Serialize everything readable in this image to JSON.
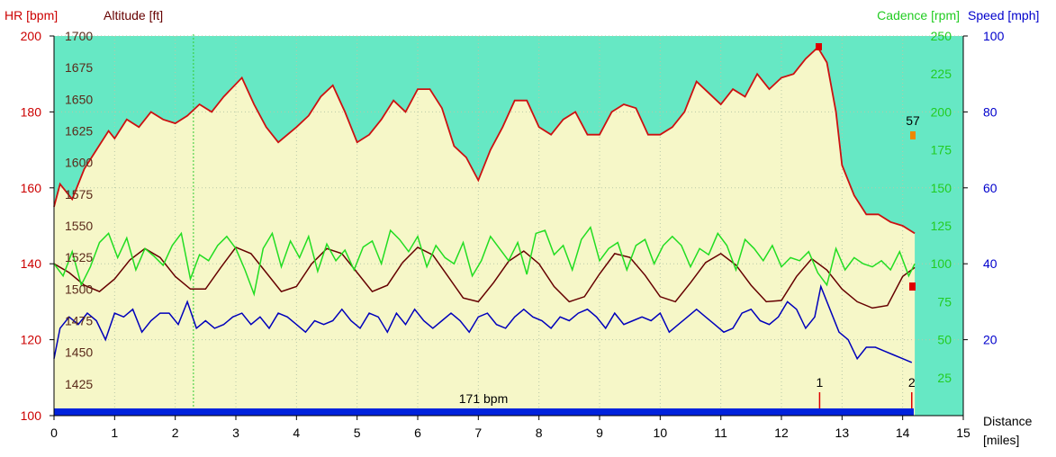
{
  "chart_data": {
    "type": "line",
    "axes": {
      "hr": {
        "label": "HR [bpm]",
        "range": [
          100,
          200
        ],
        "ticks": [
          100,
          120,
          140,
          160,
          180,
          200
        ],
        "color": "#cc0000"
      },
      "altitude": {
        "label": "Altitude [ft]",
        "range": [
          1400,
          1700
        ],
        "ticks": [
          1425,
          1450,
          1475,
          1500,
          1525,
          1550,
          1575,
          1600,
          1625,
          1650,
          1675,
          1700
        ],
        "color": "#660000"
      },
      "cadence": {
        "label": "Cadence [rpm]",
        "range": [
          0,
          250
        ],
        "ticks": [
          25,
          50,
          75,
          100,
          125,
          150,
          175,
          200,
          225,
          250
        ],
        "color": "#22cc22"
      },
      "speed": {
        "label": "Speed [mph]",
        "range": [
          0,
          100
        ],
        "ticks": [
          20,
          40,
          60,
          80,
          100
        ],
        "color": "#0000cc"
      },
      "distance": {
        "label": "Distance",
        "unit": "[miles]",
        "range": [
          0,
          15
        ],
        "ticks": [
          0,
          1,
          2,
          3,
          4,
          5,
          6,
          7,
          8,
          9,
          10,
          11,
          12,
          13,
          14,
          15
        ]
      }
    },
    "annotations": {
      "avg_hr_label": "171 bpm",
      "peak_value_label": "57",
      "lap_markers": [
        {
          "label": "1",
          "x": 12.63
        },
        {
          "label": "2",
          "x": 14.15
        }
      ],
      "vertical_marker_x": 2.3
    },
    "series": [
      {
        "name": "Heart Rate",
        "axis": "hr",
        "color": "#cc1111",
        "x": [
          0,
          0.1,
          0.3,
          0.5,
          0.7,
          0.9,
          1.0,
          1.2,
          1.4,
          1.6,
          1.8,
          2.0,
          2.2,
          2.4,
          2.6,
          2.8,
          3.1,
          3.3,
          3.5,
          3.7,
          4.0,
          4.2,
          4.4,
          4.6,
          4.8,
          5.0,
          5.2,
          5.4,
          5.6,
          5.8,
          6.0,
          6.2,
          6.4,
          6.6,
          6.8,
          7.0,
          7.2,
          7.4,
          7.6,
          7.8,
          8.0,
          8.2,
          8.4,
          8.6,
          8.8,
          9.0,
          9.2,
          9.4,
          9.6,
          9.8,
          10.0,
          10.2,
          10.4,
          10.6,
          10.8,
          11.0,
          11.2,
          11.4,
          11.6,
          11.8,
          12.0,
          12.2,
          12.4,
          12.6,
          12.75,
          12.9,
          13.0,
          13.2,
          13.4,
          13.6,
          13.8,
          14.0,
          14.2
        ],
        "y": [
          155,
          161,
          157,
          165,
          170,
          175,
          173,
          178,
          176,
          180,
          178,
          177,
          179,
          182,
          180,
          184,
          189,
          182,
          176,
          172,
          176,
          179,
          184,
          187,
          180,
          172,
          174,
          178,
          183,
          180,
          186,
          186,
          181,
          171,
          168,
          162,
          170,
          176,
          183,
          183,
          176,
          174,
          178,
          180,
          174,
          174,
          180,
          182,
          181,
          174,
          174,
          176,
          180,
          188,
          185,
          182,
          186,
          184,
          190,
          186,
          189,
          190,
          194,
          197,
          193,
          180,
          166,
          158,
          153,
          153,
          151,
          150,
          148
        ]
      },
      {
        "name": "Altitude",
        "axis": "altitude",
        "color": "#660000",
        "x": [
          0,
          0.25,
          0.5,
          0.75,
          1.0,
          1.25,
          1.5,
          1.75,
          2.0,
          2.25,
          2.5,
          2.75,
          3.0,
          3.25,
          3.5,
          3.75,
          4.0,
          4.25,
          4.5,
          4.75,
          5.0,
          5.25,
          5.5,
          5.75,
          6.0,
          6.25,
          6.5,
          6.75,
          7.0,
          7.25,
          7.5,
          7.75,
          8.0,
          8.25,
          8.5,
          8.75,
          9.0,
          9.25,
          9.5,
          9.75,
          10.0,
          10.25,
          10.5,
          10.75,
          11.0,
          11.25,
          11.5,
          11.75,
          12.0,
          12.25,
          12.5,
          12.75,
          13.0,
          13.25,
          13.5,
          13.75,
          14.0,
          14.2
        ],
        "y": [
          1520,
          1513,
          1503,
          1498,
          1508,
          1523,
          1532,
          1525,
          1510,
          1500,
          1500,
          1517,
          1533,
          1528,
          1513,
          1498,
          1502,
          1520,
          1532,
          1528,
          1513,
          1498,
          1503,
          1521,
          1533,
          1527,
          1510,
          1493,
          1490,
          1505,
          1522,
          1530,
          1520,
          1502,
          1490,
          1494,
          1512,
          1528,
          1525,
          1511,
          1494,
          1490,
          1505,
          1521,
          1528,
          1519,
          1503,
          1490,
          1491,
          1510,
          1524,
          1515,
          1500,
          1490,
          1485,
          1487,
          1510,
          1517
        ]
      },
      {
        "name": "Cadence",
        "axis": "cadence",
        "color": "#22dd22",
        "x": [
          0,
          0.15,
          0.3,
          0.45,
          0.6,
          0.75,
          0.9,
          1.05,
          1.2,
          1.35,
          1.5,
          1.65,
          1.8,
          1.95,
          2.1,
          2.25,
          2.4,
          2.55,
          2.7,
          2.85,
          3.0,
          3.15,
          3.3,
          3.45,
          3.6,
          3.75,
          3.9,
          4.05,
          4.2,
          4.35,
          4.5,
          4.65,
          4.8,
          4.95,
          5.1,
          5.25,
          5.4,
          5.55,
          5.7,
          5.85,
          6.0,
          6.15,
          6.3,
          6.45,
          6.6,
          6.75,
          6.9,
          7.05,
          7.2,
          7.35,
          7.5,
          7.65,
          7.8,
          7.95,
          8.1,
          8.25,
          8.4,
          8.55,
          8.7,
          8.85,
          9.0,
          9.15,
          9.3,
          9.45,
          9.6,
          9.75,
          9.9,
          10.05,
          10.2,
          10.35,
          10.5,
          10.65,
          10.8,
          10.95,
          11.1,
          11.25,
          11.4,
          11.55,
          11.7,
          11.85,
          12.0,
          12.15,
          12.3,
          12.45,
          12.6,
          12.75,
          12.9,
          13.05,
          13.2,
          13.35,
          13.5,
          13.65,
          13.8,
          13.95,
          14.1,
          14.2
        ],
        "y": [
          100,
          92,
          108,
          86,
          98,
          114,
          120,
          104,
          117,
          96,
          110,
          105,
          99,
          112,
          120,
          90,
          106,
          102,
          112,
          118,
          110,
          96,
          80,
          110,
          120,
          98,
          115,
          104,
          118,
          95,
          113,
          102,
          109,
          96,
          111,
          115,
          100,
          122,
          116,
          108,
          118,
          98,
          112,
          104,
          100,
          114,
          92,
          102,
          118,
          110,
          102,
          114,
          93,
          120,
          122,
          106,
          112,
          96,
          116,
          124,
          102,
          110,
          114,
          96,
          112,
          116,
          100,
          112,
          118,
          112,
          98,
          110,
          106,
          120,
          112,
          96,
          116,
          110,
          102,
          112,
          98,
          104,
          102,
          108,
          94,
          86,
          110,
          96,
          104,
          100,
          98,
          102,
          96,
          108,
          92,
          100
        ]
      },
      {
        "name": "Speed",
        "axis": "speed",
        "color": "#0000bb",
        "x": [
          0,
          0.1,
          0.25,
          0.4,
          0.55,
          0.7,
          0.85,
          1.0,
          1.15,
          1.3,
          1.45,
          1.6,
          1.75,
          1.9,
          2.05,
          2.2,
          2.35,
          2.5,
          2.65,
          2.8,
          2.95,
          3.1,
          3.25,
          3.4,
          3.55,
          3.7,
          3.85,
          4.0,
          4.15,
          4.3,
          4.45,
          4.6,
          4.75,
          4.9,
          5.05,
          5.2,
          5.35,
          5.5,
          5.65,
          5.8,
          5.95,
          6.1,
          6.25,
          6.4,
          6.55,
          6.7,
          6.85,
          7.0,
          7.15,
          7.3,
          7.45,
          7.6,
          7.75,
          7.9,
          8.05,
          8.2,
          8.35,
          8.5,
          8.65,
          8.8,
          8.95,
          9.1,
          9.25,
          9.4,
          9.55,
          9.7,
          9.85,
          10.0,
          10.15,
          10.3,
          10.45,
          10.6,
          10.75,
          10.9,
          11.05,
          11.2,
          11.35,
          11.5,
          11.65,
          11.8,
          11.95,
          12.1,
          12.25,
          12.4,
          12.55,
          12.65,
          12.8,
          12.95,
          13.1,
          13.25,
          13.4,
          13.55,
          13.7,
          13.85,
          14.0,
          14.15
        ],
        "y": [
          15,
          23,
          26,
          24,
          27,
          25,
          20,
          27,
          26,
          28,
          22,
          25,
          27,
          27,
          24,
          30,
          23,
          25,
          23,
          24,
          26,
          27,
          24,
          26,
          23,
          27,
          26,
          24,
          22,
          25,
          24,
          25,
          28,
          25,
          23,
          27,
          26,
          22,
          27,
          24,
          28,
          25,
          23,
          25,
          27,
          25,
          22,
          26,
          27,
          24,
          23,
          26,
          28,
          26,
          25,
          23,
          26,
          25,
          27,
          28,
          26,
          23,
          27,
          24,
          25,
          26,
          25,
          27,
          22,
          24,
          26,
          28,
          26,
          24,
          22,
          23,
          27,
          28,
          25,
          24,
          26,
          30,
          28,
          23,
          26,
          34,
          28,
          22,
          20,
          15,
          18,
          18,
          17,
          16,
          15,
          14
        ]
      }
    ]
  }
}
